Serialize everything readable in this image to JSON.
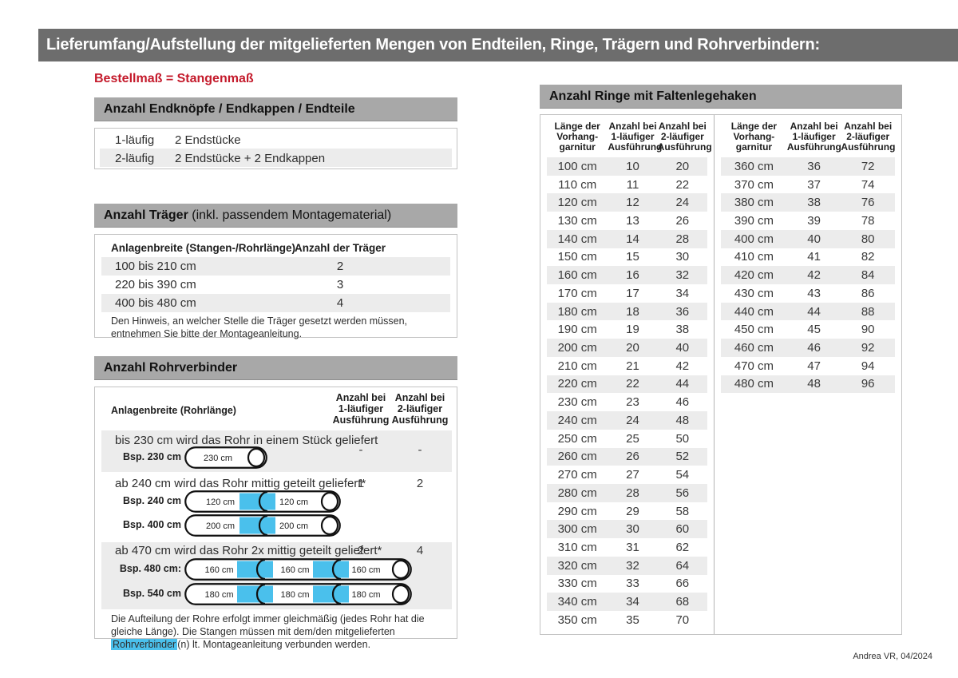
{
  "page": {
    "title": "Lieferumfang/Aufstellung der mitgelieferten Mengen von Endteilen, Ringe, Trägern und Rohrverbindern:",
    "subtitle": "Bestellmaß = Stangenmaß",
    "footer": "Andrea VR, 04/2024"
  },
  "colors": {
    "topbar_gray": "#6d6d6d",
    "section_gray": "#a8a8a8",
    "stripe_gray": "#ececec",
    "accent_red": "#c41a2b",
    "connector_blue": "#4ac0ec"
  },
  "endteile": {
    "header": "Anzahl Endknöpfe / Endkappen / Endteile",
    "rows": [
      {
        "label": "1-läufig",
        "value": "2 Endstücke"
      },
      {
        "label": "2-läufig",
        "value": "2 Endstücke + 2 Endkappen"
      }
    ]
  },
  "traeger": {
    "header_bold": "Anzahl Träger",
    "header_normal": " (inkl. passendem Montagematerial)",
    "col1": "Anlagenbreite (Stangen-/Rohrlänge)",
    "col2": "Anzahl der Träger",
    "rows": [
      {
        "label": "100 bis 210 cm",
        "value": "2"
      },
      {
        "label": "220 bis 390 cm",
        "value": "3"
      },
      {
        "label": "400 bis 480 cm",
        "value": "4"
      }
    ],
    "note": "Den Hinweis, an welcher Stelle die Träger gesetzt werden müssen, entnehmen Sie bitte der Montageanleitung."
  },
  "rohrverbinder": {
    "header": "Anzahl Rohrverbinder",
    "col_label": "Anlagenbreite (Rohrlänge)",
    "col_1laeufig": "Anzahl bei\n1-läufiger\nAusführung",
    "col_2laeufig": "Anzahl bei\n2-läufiger\nAusführung",
    "rows": [
      {
        "text": "bis 230 cm wird das Rohr in einem Stück geliefert",
        "v1": "-",
        "v2": "-",
        "examples": [
          {
            "label": "Bsp. 230 cm",
            "segments": [
              "230 cm"
            ]
          }
        ]
      },
      {
        "text": "ab 240 cm wird das Rohr mittig geteilt geliefert*",
        "v1": "1",
        "v2": "2",
        "examples": [
          {
            "label": "Bsp. 240 cm",
            "segments": [
              "120 cm",
              "120 cm"
            ]
          },
          {
            "label": "Bsp. 400 cm",
            "segments": [
              "200 cm",
              "200 cm"
            ]
          }
        ]
      },
      {
        "text": "ab 470 cm wird das Rohr 2x mittig geteilt geliefert*",
        "v1": "2",
        "v2": "4",
        "examples": [
          {
            "label": "Bsp. 480 cm:",
            "segments": [
              "160 cm",
              "160 cm",
              "160 cm"
            ]
          },
          {
            "label": "Bsp. 540 cm",
            "segments": [
              "180 cm",
              "180 cm",
              "180 cm"
            ]
          }
        ]
      }
    ],
    "footnote_part1": "Die Aufteilung der Rohre erfolgt immer gleichmäßig (jedes Rohr hat die gleiche Länge). Die Stangen müssen mit dem/den mitgelieferten ",
    "footnote_highlight": "Rohrverbinder",
    "footnote_part2": "(n) lt. Montageanleitung verbunden werden."
  },
  "ringe": {
    "header": "Anzahl Ringe mit Faltenlegehaken",
    "col_headers": [
      "Länge der\nVorhang-\ngarnitur",
      "Anzahl bei\n1-läufiger\nAusführung",
      "Anzahl bei\n2-läufiger\nAusführung"
    ],
    "table1": [
      [
        "100 cm",
        "10",
        "20"
      ],
      [
        "110 cm",
        "11",
        "22"
      ],
      [
        "120 cm",
        "12",
        "24"
      ],
      [
        "130 cm",
        "13",
        "26"
      ],
      [
        "140 cm",
        "14",
        "28"
      ],
      [
        "150 cm",
        "15",
        "30"
      ],
      [
        "160 cm",
        "16",
        "32"
      ],
      [
        "170 cm",
        "17",
        "34"
      ],
      [
        "180 cm",
        "18",
        "36"
      ],
      [
        "190 cm",
        "19",
        "38"
      ],
      [
        "200 cm",
        "20",
        "40"
      ],
      [
        "210 cm",
        "21",
        "42"
      ],
      [
        "220 cm",
        "22",
        "44"
      ],
      [
        "230 cm",
        "23",
        "46"
      ],
      [
        "240 cm",
        "24",
        "48"
      ],
      [
        "250 cm",
        "25",
        "50"
      ],
      [
        "260 cm",
        "26",
        "52"
      ],
      [
        "270 cm",
        "27",
        "54"
      ],
      [
        "280 cm",
        "28",
        "56"
      ],
      [
        "290 cm",
        "29",
        "58"
      ],
      [
        "300 cm",
        "30",
        "60"
      ],
      [
        "310 cm",
        "31",
        "62"
      ],
      [
        "320 cm",
        "32",
        "64"
      ],
      [
        "330 cm",
        "33",
        "66"
      ],
      [
        "340 cm",
        "34",
        "68"
      ],
      [
        "350 cm",
        "35",
        "70"
      ]
    ],
    "table2": [
      [
        "360 cm",
        "36",
        "72"
      ],
      [
        "370 cm",
        "37",
        "74"
      ],
      [
        "380 cm",
        "38",
        "76"
      ],
      [
        "390 cm",
        "39",
        "78"
      ],
      [
        "400 cm",
        "40",
        "80"
      ],
      [
        "410 cm",
        "41",
        "82"
      ],
      [
        "420 cm",
        "42",
        "84"
      ],
      [
        "430 cm",
        "43",
        "86"
      ],
      [
        "440 cm",
        "44",
        "88"
      ],
      [
        "450 cm",
        "45",
        "90"
      ],
      [
        "460 cm",
        "46",
        "92"
      ],
      [
        "470 cm",
        "47",
        "94"
      ],
      [
        "480 cm",
        "48",
        "96"
      ]
    ]
  }
}
